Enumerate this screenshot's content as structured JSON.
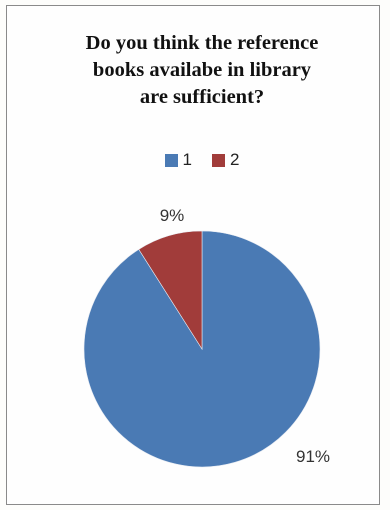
{
  "chart_data": {
    "type": "pie",
    "title_lines": [
      "Do you think the reference",
      "books availabe in library",
      "are sufficient?"
    ],
    "categories": [
      "1",
      "2"
    ],
    "values": [
      91,
      9
    ],
    "data_labels": [
      "91%",
      "9%"
    ],
    "colors": [
      "#4a7ab4",
      "#a13c3a"
    ],
    "legend_position": "top"
  }
}
